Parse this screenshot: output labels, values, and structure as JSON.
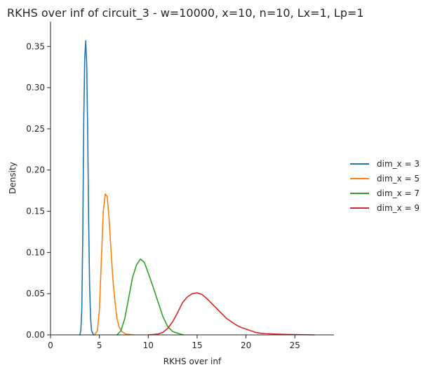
{
  "chart_data": {
    "type": "line",
    "title": "RKHS over inf of circuit_3 - w=10000, x=10, n=10, Lx=1, Lp=1",
    "xlabel": "RKHS over inf",
    "ylabel": "Density",
    "xlim": [
      0,
      29
    ],
    "ylim": [
      0,
      0.38
    ],
    "xticks": [
      0,
      5,
      10,
      15,
      20,
      25
    ],
    "yticks": [
      0.0,
      0.05,
      0.1,
      0.15,
      0.2,
      0.25,
      0.3,
      0.35
    ],
    "xtick_labels": [
      "0",
      "5",
      "10",
      "15",
      "20",
      "25"
    ],
    "ytick_labels": [
      "0.00",
      "0.05",
      "0.10",
      "0.15",
      "0.20",
      "0.25",
      "0.30",
      "0.35"
    ],
    "legend_position": "right",
    "grid": false,
    "series": [
      {
        "name": "dim_x = 3",
        "color": "#1f77b4",
        "points": [
          [
            3.0,
            0.0
          ],
          [
            3.1,
            0.005
          ],
          [
            3.2,
            0.03
          ],
          [
            3.3,
            0.12
          ],
          [
            3.4,
            0.26
          ],
          [
            3.5,
            0.335
          ],
          [
            3.6,
            0.357
          ],
          [
            3.7,
            0.33
          ],
          [
            3.8,
            0.25
          ],
          [
            3.9,
            0.14
          ],
          [
            4.0,
            0.06
          ],
          [
            4.1,
            0.02
          ],
          [
            4.2,
            0.005
          ],
          [
            4.4,
            0.0
          ]
        ]
      },
      {
        "name": "dim_x = 5",
        "color": "#ff7f0e",
        "points": [
          [
            4.5,
            0.0
          ],
          [
            4.8,
            0.005
          ],
          [
            5.0,
            0.03
          ],
          [
            5.2,
            0.09
          ],
          [
            5.4,
            0.15
          ],
          [
            5.6,
            0.171
          ],
          [
            5.8,
            0.168
          ],
          [
            6.0,
            0.14
          ],
          [
            6.2,
            0.1
          ],
          [
            6.4,
            0.065
          ],
          [
            6.6,
            0.04
          ],
          [
            6.8,
            0.02
          ],
          [
            7.0,
            0.01
          ],
          [
            7.3,
            0.004
          ],
          [
            7.7,
            0.001
          ],
          [
            8.5,
            0.0
          ]
        ]
      },
      {
        "name": "dim_x = 7",
        "color": "#2ca02c",
        "points": [
          [
            6.8,
            0.0
          ],
          [
            7.2,
            0.005
          ],
          [
            7.6,
            0.02
          ],
          [
            8.0,
            0.045
          ],
          [
            8.4,
            0.07
          ],
          [
            8.8,
            0.085
          ],
          [
            9.2,
            0.092
          ],
          [
            9.6,
            0.088
          ],
          [
            10.0,
            0.075
          ],
          [
            10.5,
            0.058
          ],
          [
            11.0,
            0.04
          ],
          [
            11.5,
            0.022
          ],
          [
            12.0,
            0.01
          ],
          [
            12.5,
            0.004
          ],
          [
            13.0,
            0.002
          ],
          [
            13.6,
            0.0
          ]
        ]
      },
      {
        "name": "dim_x = 9",
        "color": "#d62728",
        "points": [
          [
            10.0,
            0.0
          ],
          [
            11.0,
            0.001
          ],
          [
            11.5,
            0.003
          ],
          [
            12.0,
            0.008
          ],
          [
            12.5,
            0.016
          ],
          [
            13.0,
            0.027
          ],
          [
            13.5,
            0.039
          ],
          [
            14.0,
            0.046
          ],
          [
            14.5,
            0.05
          ],
          [
            15.0,
            0.051
          ],
          [
            15.5,
            0.049
          ],
          [
            16.0,
            0.044
          ],
          [
            16.5,
            0.038
          ],
          [
            17.0,
            0.032
          ],
          [
            17.5,
            0.026
          ],
          [
            18.0,
            0.02
          ],
          [
            18.5,
            0.016
          ],
          [
            19.0,
            0.012
          ],
          [
            19.5,
            0.009
          ],
          [
            20.0,
            0.007
          ],
          [
            20.5,
            0.005
          ],
          [
            21.0,
            0.003
          ],
          [
            21.5,
            0.002
          ],
          [
            22.0,
            0.0015
          ],
          [
            23.0,
            0.001
          ],
          [
            24.0,
            0.0006
          ],
          [
            25.0,
            0.0004
          ],
          [
            26.0,
            0.0002
          ],
          [
            27.0,
            0.0
          ]
        ]
      }
    ]
  }
}
